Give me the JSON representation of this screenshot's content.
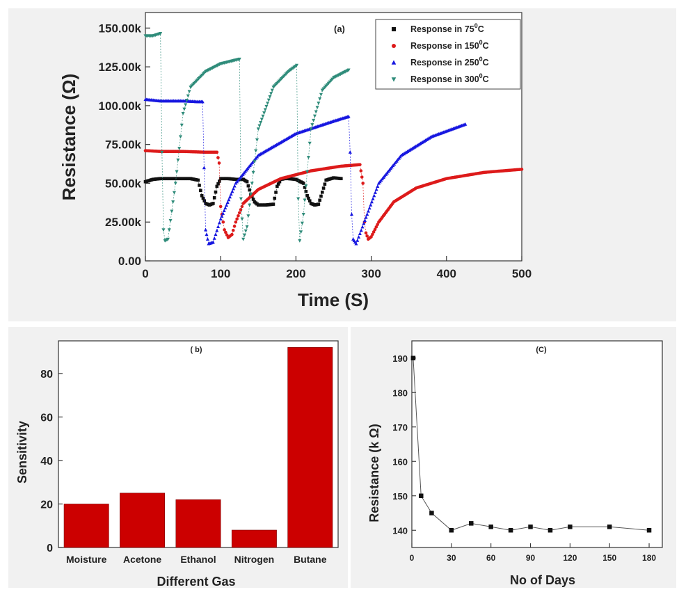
{
  "colors": {
    "black": "#111111",
    "red": "#dd1a1a",
    "blue": "#1717e0",
    "teal": "#2f8c7a",
    "bar": "#cc0000",
    "panelBg": "#f1f1f1"
  },
  "chart_data": [
    {
      "id": "a",
      "type": "line",
      "panel_label": "(a)",
      "xlabel": "Time (S)",
      "ylabel": "Resistance (Ω)",
      "xlim": [
        0,
        500
      ],
      "ylim": [
        0,
        160000
      ],
      "xticks": [
        0,
        100,
        200,
        300,
        400,
        500
      ],
      "yticks": [
        0,
        25000,
        50000,
        75000,
        100000,
        125000,
        150000
      ],
      "ytick_labels": [
        "0.00",
        "25.00k",
        "50.00k",
        "75.00k",
        "100.00k",
        "125.00k",
        "150.00k"
      ],
      "legend_position": "top-right",
      "series": [
        {
          "name": "Response in 75°C",
          "name_base": "Response in 75",
          "name_sup": "0",
          "name_unit": "C",
          "color": "#111111",
          "marker": "square",
          "x": [
            0,
            10,
            20,
            40,
            60,
            70,
            75,
            80,
            85,
            90,
            95,
            100,
            110,
            120,
            130,
            135,
            140,
            145,
            150,
            160,
            170,
            175,
            180,
            185,
            190,
            200,
            210,
            215,
            220,
            225,
            230,
            240,
            250,
            260
          ],
          "y": [
            51000,
            52500,
            53000,
            53000,
            53000,
            52000,
            42000,
            37000,
            36000,
            37000,
            48000,
            53000,
            53000,
            52500,
            52500,
            51000,
            43000,
            38000,
            36000,
            36000,
            36500,
            48000,
            52500,
            53000,
            53000,
            52500,
            50000,
            42000,
            37000,
            36000,
            36500,
            52000,
            53500,
            53000
          ]
        },
        {
          "name": "Response in 150°C",
          "name_base": "Response in 150",
          "name_sup": "0",
          "name_unit": "C",
          "color": "#dd1a1a",
          "marker": "circle",
          "x": [
            0,
            20,
            50,
            80,
            95,
            98,
            100,
            105,
            110,
            115,
            120,
            130,
            150,
            180,
            220,
            260,
            285,
            289,
            291,
            293,
            296,
            300,
            310,
            330,
            360,
            400,
            450,
            500
          ],
          "y": [
            71000,
            70500,
            70500,
            70000,
            70000,
            63000,
            35000,
            20000,
            15000,
            17000,
            25000,
            37000,
            46000,
            53000,
            58000,
            61000,
            62000,
            50000,
            25000,
            18000,
            14000,
            15500,
            25000,
            38000,
            47000,
            53000,
            57000,
            59000
          ]
        },
        {
          "name": "Response in 250°C",
          "name_base": "Response in 250",
          "name_sup": "0",
          "name_unit": "C",
          "color": "#1717e0",
          "marker": "triangle-up",
          "x": [
            0,
            20,
            50,
            70,
            76,
            78,
            80,
            84,
            90,
            100,
            120,
            150,
            200,
            250,
            270,
            272,
            274,
            276,
            280,
            290,
            310,
            340,
            380,
            425
          ],
          "y": [
            104000,
            103000,
            103000,
            102500,
            102500,
            60000,
            20000,
            11000,
            12000,
            27000,
            50000,
            68000,
            82000,
            90000,
            93000,
            70000,
            30000,
            14000,
            11000,
            24000,
            50000,
            68000,
            80000,
            88000
          ]
        },
        {
          "name": "Response in 300°C",
          "name_base": "Response in 300",
          "name_sup": "0",
          "name_unit": "C",
          "color": "#2f8c7a",
          "marker": "triangle-down",
          "x": [
            0,
            10,
            20,
            22,
            24,
            26,
            30,
            40,
            50,
            60,
            80,
            100,
            125,
            127,
            130,
            135,
            150,
            170,
            190,
            201,
            203,
            205,
            210,
            220,
            235,
            250,
            270
          ],
          "y": [
            145000,
            145000,
            146500,
            70000,
            20000,
            13000,
            14000,
            50000,
            95000,
            112000,
            122000,
            127000,
            130000,
            40000,
            14000,
            22000,
            85000,
            112000,
            122000,
            126000,
            40000,
            13000,
            30000,
            85000,
            110000,
            118000,
            123000
          ]
        }
      ]
    },
    {
      "id": "b",
      "type": "bar",
      "panel_label": "( b)",
      "xlabel": "Different Gas",
      "ylabel": "Sensitivity",
      "ylim": [
        0,
        95
      ],
      "yticks": [
        0,
        20,
        40,
        60,
        80
      ],
      "ytick_labels": [
        "0",
        "20",
        "40",
        "60",
        "80"
      ],
      "categories": [
        "Moisture",
        "Acetone",
        "Ethanol",
        "Nitrogen",
        "Butane"
      ],
      "values": [
        20,
        25,
        22,
        8,
        92
      ],
      "color": "#cc0000"
    },
    {
      "id": "c",
      "type": "line",
      "panel_label": "(C)",
      "xlabel": "No of Days",
      "ylabel": "Resistance  (k Ω)",
      "xlim": [
        0,
        190
      ],
      "ylim": [
        135,
        195
      ],
      "xticks": [
        0,
        30,
        60,
        90,
        120,
        150,
        180
      ],
      "yticks": [
        140,
        150,
        160,
        170,
        180,
        190
      ],
      "ytick_labels": [
        "140",
        "150",
        "160",
        "170",
        "180",
        "190"
      ],
      "series": [
        {
          "marker": "square",
          "color": "#111111",
          "x": [
            1,
            7,
            15,
            30,
            45,
            60,
            75,
            90,
            105,
            120,
            150,
            180
          ],
          "y": [
            190,
            150,
            145,
            140,
            142,
            141,
            140,
            141,
            140,
            141,
            141,
            140
          ]
        }
      ]
    }
  ]
}
